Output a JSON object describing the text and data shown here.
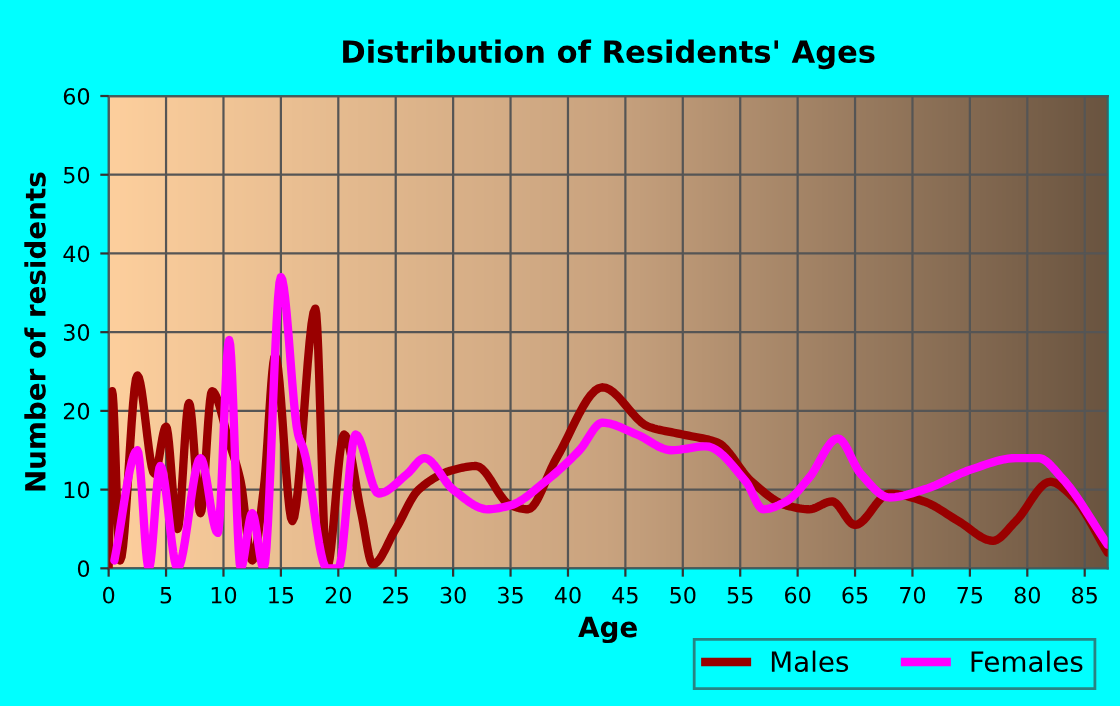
{
  "chart_data": {
    "type": "line",
    "title": "Distribution of Residents' Ages",
    "xlabel": "Age",
    "ylabel": "Number of residents",
    "xlim": [
      0,
      87
    ],
    "xticks": [
      0,
      5,
      10,
      15,
      20,
      25,
      30,
      35,
      40,
      45,
      50,
      55,
      60,
      65,
      70,
      75,
      80,
      85
    ],
    "ylim": [
      0,
      60
    ],
    "yticks": [
      0,
      10,
      20,
      30,
      40,
      50,
      60
    ],
    "grid": true,
    "legend": "bottom right",
    "marker": "none",
    "line_style": "solid",
    "series": [
      {
        "name": "Males",
        "color": "#990000",
        "x": [
          0,
          0.3,
          1,
          2.5,
          4,
          5,
          6,
          7,
          8,
          9,
          10.5,
          11.5,
          12.5,
          13.5,
          14.5,
          16,
          18,
          19,
          20.5,
          22,
          23,
          25,
          27,
          30,
          32,
          35,
          36.5,
          39,
          43,
          47,
          50,
          53,
          56,
          59,
          61,
          63,
          65,
          68,
          71,
          74,
          77,
          79,
          82,
          84,
          87
        ],
        "values": [
          0,
          22.5,
          1,
          24.5,
          12,
          18,
          5,
          21,
          7,
          22.5,
          16,
          11,
          1,
          10,
          27,
          6,
          33,
          0,
          17,
          7,
          0.5,
          5,
          10,
          12.5,
          13,
          8,
          7.5,
          14,
          23,
          18,
          17,
          16,
          11,
          8,
          7.5,
          8.5,
          5.5,
          9.5,
          8.5,
          6,
          3.5,
          6,
          11,
          9,
          2
        ]
      },
      {
        "name": "Females",
        "color": "#ff00ff",
        "x": [
          0.5,
          2.5,
          3.5,
          4.5,
          6,
          8,
          9.5,
          10.5,
          11.5,
          12.5,
          13.5,
          15,
          16.5,
          17,
          19,
          20,
          21.5,
          23.5,
          26,
          27.5,
          30,
          33,
          35,
          38,
          41,
          43,
          46,
          49,
          52,
          55.5,
          57,
          59,
          61,
          63.5,
          65.5,
          68,
          71,
          75,
          79,
          81,
          83,
          87
        ],
        "values": [
          1,
          15,
          0,
          13,
          0,
          14,
          4.5,
          29,
          0,
          7,
          0,
          37,
          17,
          15,
          0,
          0,
          17,
          9.5,
          12,
          14,
          10,
          7.5,
          8,
          11,
          15,
          18.5,
          17,
          15,
          15.5,
          11,
          7.5,
          8.5,
          11.5,
          16.5,
          12,
          9,
          10,
          12.5,
          14,
          14,
          11.5,
          3
        ]
      }
    ]
  }
}
